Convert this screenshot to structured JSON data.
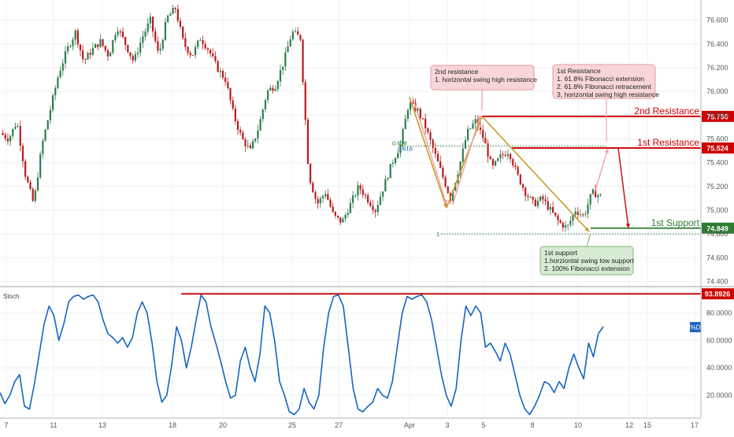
{
  "chart_data": [
    {
      "type": "line",
      "title": "",
      "subtitle": "",
      "price_ticks": [
        "76.600",
        "76.400",
        "76.200",
        "76.000",
        "75.800",
        "75.600",
        "75.400",
        "75.200",
        "75.000",
        "74.800",
        "74.600",
        "74.400"
      ],
      "price_tick_values": [
        76.6,
        76.4,
        76.2,
        76.0,
        75.8,
        75.6,
        75.4,
        75.2,
        75.0,
        74.8,
        74.6,
        74.4
      ],
      "ylim": [
        74.37,
        76.77
      ],
      "x_labels": [
        "7",
        "11",
        "13",
        "18",
        "20",
        "25",
        "27",
        "Apr",
        "3",
        "5",
        "8",
        "10",
        "12",
        "15",
        "17"
      ],
      "levels": [
        {
          "name": "2nd Resistance",
          "value": 75.79,
          "value_label": "75.790",
          "color": "#cc0000"
        },
        {
          "name": "1st Resistance",
          "value": 75.524,
          "value_label": "75.524",
          "color": "#cc0000"
        },
        {
          "name": "1st Support",
          "value": 74.849,
          "value_label": "74.849",
          "color": "#2e7d32"
        }
      ],
      "fib_labels": {
        "upper": "0.618",
        "upper_overlap": "0.618",
        "lower": "1"
      },
      "fib_levels": [
        75.54,
        74.8
      ],
      "candles_color_up": "#2e7d4f",
      "candles_color_down": "#b71c1c",
      "price_path": [
        75.65,
        75.6,
        75.75,
        75.3,
        75.05,
        75.55,
        75.85,
        76.15,
        76.35,
        76.5,
        76.25,
        76.35,
        76.42,
        76.3,
        76.55,
        76.4,
        76.25,
        76.45,
        76.6,
        76.3,
        76.62,
        76.7,
        76.4,
        76.3,
        76.45,
        76.35,
        76.2,
        76.1,
        75.8,
        75.6,
        75.5,
        75.7,
        76.0,
        76.05,
        76.25,
        76.5,
        76.45,
        75.3,
        75.05,
        75.15,
        74.95,
        74.9,
        75.05,
        75.2,
        75.1,
        75.0,
        75.2,
        75.4,
        75.55,
        75.9,
        75.85,
        75.7,
        75.5,
        75.3,
        75.1,
        75.35,
        75.65,
        75.75,
        75.6,
        75.35,
        75.45,
        75.5,
        75.3,
        75.15,
        75.05,
        75.1,
        75.0,
        74.9,
        74.85,
        75.0,
        74.95,
        75.15,
        75.12
      ]
    },
    {
      "type": "line",
      "title": "Stoch",
      "series": [
        {
          "name": "%D",
          "color": "#1565c0"
        }
      ],
      "y_ticks": [
        "80.0000",
        "60.0000",
        "40.0000",
        "20.0000"
      ],
      "y_tick_values": [
        80,
        60,
        40,
        20
      ],
      "ylim": [
        4,
        98
      ],
      "level": {
        "value": 93.8926,
        "value_label": "93.8926",
        "color": "#cc0000"
      },
      "values": [
        22,
        14,
        20,
        30,
        35,
        12,
        10,
        28,
        50,
        72,
        85,
        78,
        60,
        72,
        88,
        92,
        93,
        90,
        92,
        93,
        88,
        75,
        65,
        62,
        58,
        62,
        55,
        62,
        80,
        88,
        80,
        58,
        30,
        15,
        20,
        42,
        70,
        60,
        40,
        55,
        75,
        93,
        88,
        70,
        58,
        45,
        30,
        18,
        20,
        45,
        55,
        40,
        30,
        50,
        85,
        80,
        60,
        30,
        20,
        8,
        6,
        10,
        25,
        15,
        10,
        20,
        55,
        80,
        92,
        93,
        85,
        55,
        25,
        10,
        8,
        12,
        15,
        25,
        20,
        18,
        30,
        55,
        80,
        92,
        90,
        92,
        93,
        88,
        75,
        55,
        35,
        20,
        12,
        25,
        60,
        85,
        78,
        85,
        80,
        55,
        58,
        52,
        45,
        58,
        50,
        35,
        20,
        10,
        6,
        12,
        20,
        30,
        28,
        22,
        30,
        25,
        40,
        50,
        40,
        32,
        58,
        48,
        65,
        70
      ]
    }
  ],
  "annotations": {
    "second_resistance_note": [
      "2nd resistance",
      "1. horizontal swing high resistance"
    ],
    "first_resistance_note": [
      "1st Resistance",
      "1. 61.8% Fibonacci extension",
      "2. 61.8% Fibonacci retracement",
      "3. horizontal swing high resistance"
    ],
    "first_support_note": [
      "1st support",
      "1.horziontal swing low support",
      "2.  100% Fibonacci extension"
    ]
  }
}
